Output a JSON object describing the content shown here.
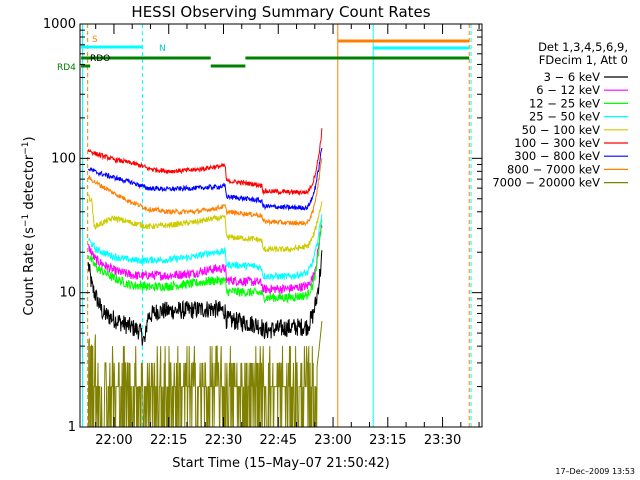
{
  "chart_data": {
    "type": "line",
    "title": "HESSI Observing Summary Count Rates",
    "xlabel": "Start Time (15–May–07 21:50:42)",
    "ylabel_main": "Count Rate (s",
    "ylabel_sup1": "−1",
    "ylabel_mid": " detector",
    "ylabel_sup2": "−1",
    "ylabel_end": ")",
    "y_scale": "log",
    "ylim": [
      1,
      1000
    ],
    "xlim_minutes": [
      -9.3,
      100.8
    ],
    "x_tick_labels": [
      "22:00",
      "22:15",
      "22:30",
      "22:45",
      "23:00",
      "23:15",
      "23:30"
    ],
    "x_tick_minutes": [
      0,
      15,
      30,
      45,
      60,
      75,
      90
    ],
    "y_tick_labels": [
      "1",
      "10",
      "100",
      "1000"
    ],
    "y_tick_values": [
      1,
      10,
      100,
      1000
    ],
    "legend_header": [
      "Det 1,3,4,5,6,9,",
      "FDecim 1, Att 0"
    ],
    "legend_placement": "right",
    "grid": false,
    "series": [
      {
        "name": "3 − 6 keV",
        "color": "#000000",
        "points": [
          [
            -7,
            16
          ],
          [
            -6,
            11
          ],
          [
            -3,
            7
          ],
          [
            3,
            5.8
          ],
          [
            7,
            5.2
          ],
          [
            8.5,
            4.3
          ],
          [
            9.2,
            6.6
          ],
          [
            12,
            7.3
          ],
          [
            20,
            7.4
          ],
          [
            27,
            7.6
          ],
          [
            30.5,
            7.3
          ],
          [
            30.8,
            6.3
          ],
          [
            39,
            5.8
          ],
          [
            40.5,
            5.6
          ],
          [
            40.8,
            5.2
          ],
          [
            48,
            5.5
          ],
          [
            53,
            5.6
          ],
          [
            54.5,
            6.8
          ],
          [
            55.5,
            9
          ],
          [
            56.3,
            13
          ],
          [
            57,
            19
          ]
        ]
      },
      {
        "name": "6 − 12 keV",
        "color": "#ff00ff",
        "points": [
          [
            -7,
            22
          ],
          [
            -5,
            17.5
          ],
          [
            0,
            14.6
          ],
          [
            5,
            13.5
          ],
          [
            8.5,
            13.3
          ],
          [
            9.2,
            13.5
          ],
          [
            15,
            13.4
          ],
          [
            22,
            14
          ],
          [
            27,
            15
          ],
          [
            30.5,
            15.2
          ],
          [
            30.8,
            12.4
          ],
          [
            39,
            12
          ],
          [
            40.5,
            11.8
          ],
          [
            40.8,
            10.6
          ],
          [
            48,
            10.7
          ],
          [
            53,
            11.2
          ],
          [
            54.5,
            13
          ],
          [
            55.5,
            17
          ],
          [
            56.3,
            25
          ],
          [
            57,
            33
          ]
        ]
      },
      {
        "name": "12 − 25 keV",
        "color": "#00ff00",
        "points": [
          [
            -7,
            19
          ],
          [
            -5,
            15.5
          ],
          [
            0,
            12.8
          ],
          [
            5,
            11.3
          ],
          [
            8.5,
            11.3
          ],
          [
            9.2,
            11
          ],
          [
            15,
            11.2
          ],
          [
            22,
            11.7
          ],
          [
            27,
            12.3
          ],
          [
            30.5,
            12.3
          ],
          [
            30.8,
            10.2
          ],
          [
            39,
            10
          ],
          [
            40.5,
            9.9
          ],
          [
            40.8,
            9.2
          ],
          [
            48,
            9.2
          ],
          [
            53,
            9.6
          ],
          [
            54.5,
            11.5
          ],
          [
            55.5,
            15
          ],
          [
            56.3,
            24
          ],
          [
            57,
            36
          ]
        ]
      },
      {
        "name": "25 − 50 keV",
        "color": "#00ffff",
        "points": [
          [
            -7,
            25
          ],
          [
            -5,
            21
          ],
          [
            0,
            18.5
          ],
          [
            5,
            17.5
          ],
          [
            8.5,
            17.3
          ],
          [
            9.2,
            17.5
          ],
          [
            15,
            17.6
          ],
          [
            22,
            18.5
          ],
          [
            27,
            20
          ],
          [
            30.5,
            20.2
          ],
          [
            30.8,
            16.2
          ],
          [
            39,
            15.7
          ],
          [
            40.5,
            15.2
          ],
          [
            40.8,
            13.3
          ],
          [
            48,
            13.2
          ],
          [
            53,
            14
          ],
          [
            54.5,
            17
          ],
          [
            55.5,
            22
          ],
          [
            56.3,
            30
          ],
          [
            57,
            40
          ]
        ]
      },
      {
        "name": "50 − 100 keV",
        "color": "#cccc00",
        "points": [
          [
            -7,
            52
          ],
          [
            -6,
            48
          ],
          [
            -5.5,
            31
          ],
          [
            0,
            36
          ],
          [
            5,
            33
          ],
          [
            8.5,
            31.5
          ],
          [
            9.2,
            31
          ],
          [
            15,
            31.8
          ],
          [
            22,
            33.5
          ],
          [
            27,
            35.5
          ],
          [
            30.5,
            36
          ],
          [
            30.8,
            26
          ],
          [
            39,
            25
          ],
          [
            40.5,
            24.5
          ],
          [
            40.8,
            21
          ],
          [
            48,
            21
          ],
          [
            53,
            22
          ],
          [
            54.5,
            26
          ],
          [
            55.5,
            32
          ],
          [
            56.3,
            40
          ],
          [
            57,
            48
          ]
        ]
      },
      {
        "name": "100 − 300 keV",
        "color": "#ff0000",
        "points": [
          [
            -7,
            115
          ],
          [
            -5,
            108
          ],
          [
            0,
            98
          ],
          [
            5,
            92
          ],
          [
            8.5,
            86
          ],
          [
            9.2,
            84
          ],
          [
            15,
            80
          ],
          [
            22,
            82
          ],
          [
            27,
            86
          ],
          [
            30.5,
            88
          ],
          [
            30.8,
            68
          ],
          [
            39,
            64
          ],
          [
            40.5,
            63
          ],
          [
            40.8,
            57
          ],
          [
            48,
            56
          ],
          [
            53,
            56
          ],
          [
            54.5,
            66
          ],
          [
            55.5,
            85
          ],
          [
            56.3,
            115
          ],
          [
            57,
            165
          ]
        ]
      },
      {
        "name": "300 − 800 keV",
        "color": "#0000ff",
        "points": [
          [
            -7,
            84
          ],
          [
            -5,
            79
          ],
          [
            0,
            72
          ],
          [
            5,
            66
          ],
          [
            8.5,
            61
          ],
          [
            9.2,
            60
          ],
          [
            15,
            59
          ],
          [
            22,
            60
          ],
          [
            27,
            61
          ],
          [
            30.5,
            62
          ],
          [
            30.8,
            52
          ],
          [
            39,
            49
          ],
          [
            40.5,
            48
          ],
          [
            40.8,
            44
          ],
          [
            48,
            43
          ],
          [
            53,
            43
          ],
          [
            54.5,
            52
          ],
          [
            55.5,
            68
          ],
          [
            56.3,
            92
          ],
          [
            57,
            125
          ]
        ]
      },
      {
        "name": "800 − 7000 keV",
        "color": "#ff8000",
        "points": [
          [
            -7,
            72
          ],
          [
            -5,
            66
          ],
          [
            0,
            55
          ],
          [
            5,
            47
          ],
          [
            8.5,
            43
          ],
          [
            9.2,
            42
          ],
          [
            15,
            40
          ],
          [
            22,
            40
          ],
          [
            27,
            42
          ],
          [
            30.5,
            44
          ],
          [
            30.8,
            40
          ],
          [
            39,
            38
          ],
          [
            40.5,
            37.5
          ],
          [
            40.8,
            34
          ],
          [
            48,
            33
          ],
          [
            53,
            33
          ],
          [
            54.5,
            40
          ],
          [
            55.5,
            55
          ],
          [
            56.3,
            75
          ],
          [
            57,
            105
          ]
        ]
      },
      {
        "name": "7000 − 20000 keV",
        "color": "#808000",
        "points": [
          [
            -7,
            3.4
          ],
          [
            -6,
            2.6
          ],
          [
            -4,
            2.2
          ],
          [
            -2,
            1.8
          ],
          [
            0,
            1.7
          ],
          [
            3,
            1.6
          ],
          [
            6,
            1.55
          ],
          [
            8.5,
            1.5
          ],
          [
            9.2,
            1.6
          ],
          [
            15,
            1.6
          ],
          [
            22,
            1.65
          ],
          [
            27,
            1.8
          ],
          [
            30.5,
            1.8
          ],
          [
            31,
            1.7
          ],
          [
            39,
            1.65
          ],
          [
            40.5,
            1.6
          ],
          [
            41,
            1.55
          ],
          [
            48,
            1.6
          ],
          [
            53,
            1.65
          ],
          [
            54.5,
            1.9
          ],
          [
            55.5,
            2.6
          ],
          [
            56.3,
            4.1
          ],
          [
            57,
            6.3
          ]
        ]
      }
    ],
    "annotations": {
      "s_label": "S",
      "n_label": "N",
      "rdo_label": "RDO",
      "rd4_label": "RD4"
    },
    "footer_date": "17–Dec–2009 13:53"
  }
}
